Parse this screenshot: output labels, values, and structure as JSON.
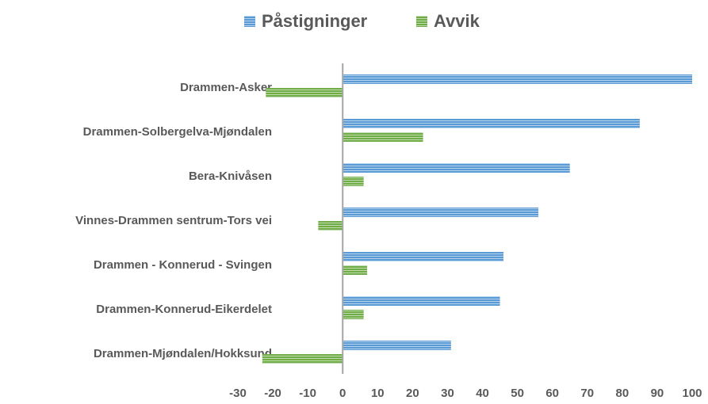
{
  "chart_data": {
    "type": "hbar",
    "categories": [
      "Drammen-Asker",
      "Drammen-Solbergelva-Mjøndalen",
      "Bera-Knivåsen",
      "Vinnes-Drammen sentrum-Tors vei",
      "Drammen - Konnerud - Svingen",
      "Drammen-Konnerud-Eikerdelet",
      "Drammen-Mjøndalen/Hokksund"
    ],
    "series": [
      {
        "name": "Påstigninger",
        "color": "#5b9bd5",
        "values": [
          100,
          85,
          65,
          56,
          46,
          45,
          31
        ]
      },
      {
        "name": "Avvik",
        "color": "#70ad47",
        "values": [
          -22,
          23,
          6,
          -7,
          7,
          6,
          -23
        ]
      }
    ],
    "xlim": [
      -30,
      100
    ],
    "xticks": [
      -30,
      -20,
      -10,
      0,
      10,
      20,
      30,
      40,
      50,
      60,
      70,
      80,
      90,
      100
    ],
    "legend": "top"
  }
}
